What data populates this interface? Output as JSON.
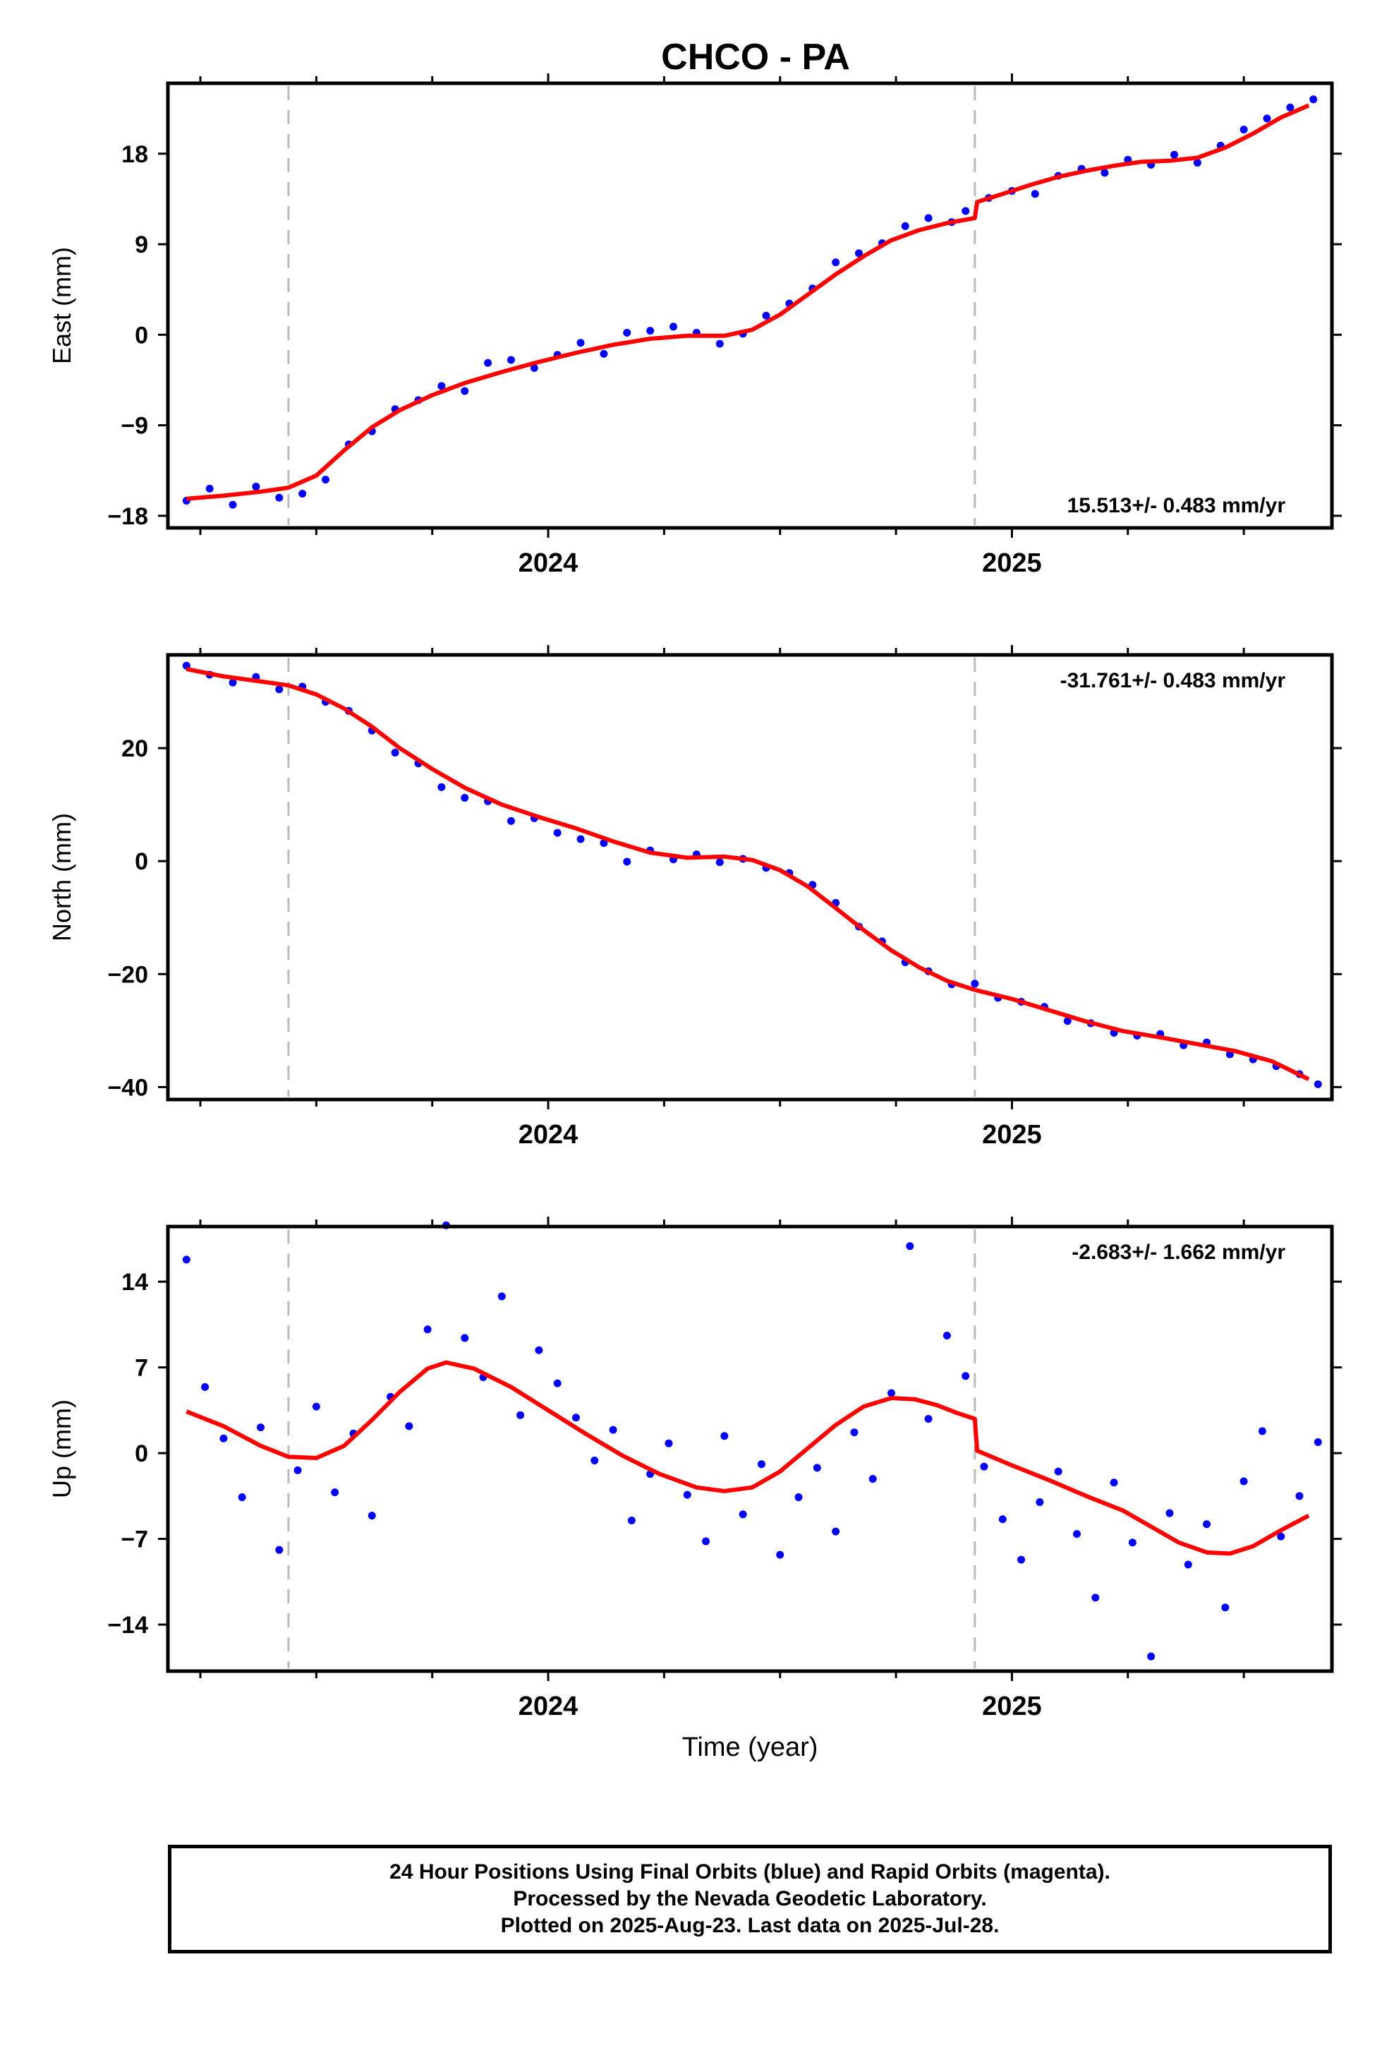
{
  "page": {
    "title": "CHCO - PA"
  },
  "colors": {
    "final_orbits": "#0000ff",
    "fit": "#ff0000",
    "event_line": "#bbbbbb",
    "frame": "#000000"
  },
  "footer": {
    "line1": "24 Hour Positions Using Final Orbits (blue) and Rapid Orbits (magenta).",
    "line2": "Processed by the Nevada Geodetic Laboratory.",
    "line3": "Plotted on 2025-Aug-23. Last data on 2025-Jul-28."
  },
  "chart_data": [
    {
      "type": "scatter",
      "title": "CHCO - PA",
      "ylabel": "East (mm)",
      "xlabel": "",
      "xlim": [
        2023.18,
        2025.69
      ],
      "ylim": [
        -19.2,
        25.0
      ],
      "yticks": [
        -18,
        -9,
        0,
        9,
        18
      ],
      "ytick_labels": [
        "−18",
        "−9",
        "0",
        "9",
        "18"
      ],
      "xticks": [
        2024,
        2025
      ],
      "event_lines": [
        2023.44,
        2024.92
      ],
      "rate_label": "15.513+/- 0.483 mm/yr",
      "rate_position": "bottom-right",
      "grid": false,
      "fit": {
        "x": [
          2023.22,
          2023.3,
          2023.38,
          2023.44,
          2023.5,
          2023.56,
          2023.62,
          2023.68,
          2023.75,
          2023.82,
          2023.9,
          2023.98,
          2024.06,
          2024.14,
          2024.22,
          2024.3,
          2024.38,
          2024.44,
          2024.5,
          2024.56,
          2024.62,
          2024.68,
          2024.74,
          2024.8,
          2024.86,
          2024.92,
          2024.925,
          2024.98,
          2025.04,
          2025.1,
          2025.16,
          2025.22,
          2025.28,
          2025.34,
          2025.4,
          2025.46,
          2025.52,
          2025.58,
          2025.64
        ],
        "y": [
          -16.3,
          -16.0,
          -15.6,
          -15.2,
          -14.0,
          -11.5,
          -9.2,
          -7.5,
          -6.0,
          -4.8,
          -3.7,
          -2.7,
          -1.8,
          -1.0,
          -0.4,
          -0.1,
          -0.1,
          0.5,
          2.0,
          4.0,
          6.0,
          7.8,
          9.4,
          10.4,
          11.1,
          11.6,
          13.2,
          14.0,
          14.9,
          15.7,
          16.3,
          16.8,
          17.2,
          17.3,
          17.6,
          18.6,
          20.0,
          21.6,
          22.8
        ]
      },
      "points": {
        "x": [
          2023.22,
          2023.27,
          2023.32,
          2023.37,
          2023.42,
          2023.47,
          2023.52,
          2023.57,
          2023.62,
          2023.67,
          2023.72,
          2023.77,
          2023.82,
          2023.87,
          2023.92,
          2023.97,
          2024.02,
          2024.07,
          2024.12,
          2024.17,
          2024.22,
          2024.27,
          2024.32,
          2024.37,
          2024.42,
          2024.47,
          2024.52,
          2024.57,
          2024.62,
          2024.67,
          2024.72,
          2024.77,
          2024.82,
          2024.87,
          2024.9,
          2024.95,
          2025.0,
          2025.05,
          2025.1,
          2025.15,
          2025.2,
          2025.25,
          2025.3,
          2025.35,
          2025.4,
          2025.45,
          2025.5,
          2025.55,
          2025.6,
          2025.65
        ],
        "y": [
          -16.5,
          -15.3,
          -16.9,
          -15.1,
          -16.2,
          -15.8,
          -14.4,
          -10.9,
          -9.6,
          -7.4,
          -6.5,
          -5.1,
          -5.6,
          -2.8,
          -2.5,
          -3.3,
          -2.0,
          -0.8,
          -1.9,
          0.2,
          0.4,
          0.8,
          0.2,
          -0.9,
          0.1,
          1.9,
          3.1,
          4.6,
          7.2,
          8.1,
          9.1,
          10.8,
          11.6,
          11.2,
          12.3,
          13.6,
          14.3,
          14.0,
          15.8,
          16.5,
          16.1,
          17.4,
          16.9,
          17.9,
          17.1,
          18.8,
          20.4,
          21.5,
          22.6,
          23.4
        ]
      }
    },
    {
      "type": "scatter",
      "ylabel": "North (mm)",
      "xlabel": "",
      "xlim": [
        2023.18,
        2025.69
      ],
      "ylim": [
        -42.2,
        36.5
      ],
      "yticks": [
        -40,
        -20,
        0,
        20
      ],
      "ytick_labels": [
        "−40",
        "−20",
        "0",
        "20"
      ],
      "xticks": [
        2024,
        2025
      ],
      "event_lines": [
        2023.44,
        2024.92
      ],
      "rate_label": "-31.761+/- 0.483 mm/yr",
      "rate_position": "top-right",
      "grid": false,
      "fit": {
        "x": [
          2023.22,
          2023.3,
          2023.38,
          2023.44,
          2023.5,
          2023.56,
          2023.62,
          2023.68,
          2023.75,
          2023.82,
          2023.9,
          2023.98,
          2024.06,
          2024.14,
          2024.22,
          2024.3,
          2024.38,
          2024.44,
          2024.5,
          2024.56,
          2024.62,
          2024.68,
          2024.74,
          2024.8,
          2024.86,
          2024.92,
          2025.0,
          2025.08,
          2025.16,
          2025.24,
          2025.32,
          2025.4,
          2025.48,
          2025.56,
          2025.64
        ],
        "y": [
          34.0,
          32.7,
          31.8,
          31.1,
          29.5,
          27.0,
          23.8,
          20.0,
          16.3,
          13.0,
          10.0,
          7.8,
          5.8,
          3.5,
          1.5,
          0.6,
          0.8,
          0.2,
          -1.6,
          -4.5,
          -8.3,
          -12.2,
          -15.8,
          -18.8,
          -21.2,
          -22.8,
          -24.4,
          -26.4,
          -28.4,
          -30.1,
          -31.2,
          -32.4,
          -33.6,
          -35.4,
          -38.6
        ]
      },
      "points": {
        "x": [
          2023.22,
          2023.27,
          2023.32,
          2023.37,
          2023.42,
          2023.47,
          2023.52,
          2023.57,
          2023.62,
          2023.67,
          2023.72,
          2023.77,
          2023.82,
          2023.87,
          2023.92,
          2023.97,
          2024.02,
          2024.07,
          2024.12,
          2024.17,
          2024.22,
          2024.27,
          2024.32,
          2024.37,
          2024.42,
          2024.47,
          2024.52,
          2024.57,
          2024.62,
          2024.67,
          2024.72,
          2024.77,
          2024.82,
          2024.87,
          2024.92,
          2024.97,
          2025.02,
          2025.07,
          2025.12,
          2025.17,
          2025.22,
          2025.27,
          2025.32,
          2025.37,
          2025.42,
          2025.47,
          2025.52,
          2025.57,
          2025.62,
          2025.66
        ],
        "y": [
          34.6,
          33.0,
          31.6,
          32.6,
          30.4,
          30.9,
          28.2,
          26.6,
          23.1,
          19.2,
          17.3,
          13.1,
          11.2,
          10.6,
          7.1,
          7.6,
          5.0,
          3.9,
          3.2,
          -0.1,
          1.9,
          0.3,
          1.2,
          -0.2,
          0.4,
          -1.2,
          -2.1,
          -4.2,
          -7.4,
          -11.6,
          -14.2,
          -17.9,
          -19.5,
          -21.8,
          -21.7,
          -24.2,
          -24.9,
          -25.8,
          -28.3,
          -28.7,
          -30.4,
          -30.9,
          -30.6,
          -32.6,
          -32.1,
          -34.2,
          -35.1,
          -36.3,
          -37.7,
          -39.5
        ]
      }
    },
    {
      "type": "scatter",
      "ylabel": "Up (mm)",
      "xlabel": "Time (year)",
      "xlim": [
        2023.18,
        2025.69
      ],
      "ylim": [
        -17.8,
        18.5
      ],
      "yticks": [
        -14,
        -7,
        0,
        7,
        14
      ],
      "ytick_labels": [
        "−14",
        "−7",
        "0",
        "7",
        "14"
      ],
      "xticks": [
        2024,
        2025
      ],
      "event_lines": [
        2023.44,
        2024.92
      ],
      "rate_label": "-2.683+/- 1.662 mm/yr",
      "rate_position": "top-right",
      "grid": false,
      "fit": {
        "x": [
          2023.22,
          2023.3,
          2023.38,
          2023.44,
          2023.5,
          2023.56,
          2023.62,
          2023.68,
          2023.74,
          2023.78,
          2023.84,
          2023.92,
          2024.0,
          2024.08,
          2024.16,
          2024.24,
          2024.32,
          2024.38,
          2024.44,
          2024.5,
          2024.56,
          2024.62,
          2024.68,
          2024.74,
          2024.79,
          2024.84,
          2024.88,
          2024.92,
          2024.925,
          2025.0,
          2025.08,
          2025.16,
          2025.24,
          2025.3,
          2025.36,
          2025.42,
          2025.47,
          2025.52,
          2025.58,
          2025.64
        ],
        "y": [
          3.4,
          2.2,
          0.6,
          -0.3,
          -0.4,
          0.6,
          2.7,
          5.0,
          6.9,
          7.4,
          6.9,
          5.4,
          3.5,
          1.6,
          -0.2,
          -1.7,
          -2.8,
          -3.1,
          -2.8,
          -1.5,
          0.4,
          2.3,
          3.8,
          4.5,
          4.4,
          3.9,
          3.3,
          2.8,
          0.2,
          -1.0,
          -2.2,
          -3.5,
          -4.7,
          -6.0,
          -7.3,
          -8.1,
          -8.2,
          -7.6,
          -6.3,
          -5.1
        ]
      },
      "points": {
        "x": [
          2023.22,
          2023.26,
          2023.3,
          2023.34,
          2023.38,
          2023.42,
          2023.46,
          2023.5,
          2023.54,
          2023.58,
          2023.62,
          2023.66,
          2023.7,
          2023.74,
          2023.78,
          2023.82,
          2023.86,
          2023.9,
          2023.94,
          2023.98,
          2024.02,
          2024.06,
          2024.1,
          2024.14,
          2024.18,
          2024.22,
          2024.26,
          2024.3,
          2024.34,
          2024.38,
          2024.42,
          2024.46,
          2024.5,
          2024.54,
          2024.58,
          2024.62,
          2024.66,
          2024.7,
          2024.74,
          2024.78,
          2024.82,
          2024.86,
          2024.9,
          2024.94,
          2024.98,
          2025.02,
          2025.06,
          2025.1,
          2025.14,
          2025.18,
          2025.22,
          2025.26,
          2025.3,
          2025.34,
          2025.38,
          2025.42,
          2025.46,
          2025.5,
          2025.54,
          2025.58,
          2025.62,
          2025.66
        ],
        "y": [
          15.8,
          5.4,
          1.2,
          -3.6,
          2.1,
          -7.9,
          -1.4,
          3.8,
          -3.2,
          1.6,
          -5.1,
          4.6,
          2.2,
          10.1,
          18.6,
          9.4,
          6.2,
          12.8,
          3.1,
          8.4,
          5.7,
          2.9,
          -0.6,
          1.9,
          -5.5,
          -1.7,
          0.8,
          -3.4,
          -7.2,
          1.4,
          -5.0,
          -0.9,
          -8.3,
          -3.6,
          -1.2,
          -6.4,
          1.7,
          -2.1,
          4.9,
          16.9,
          2.8,
          9.6,
          6.3,
          -1.1,
          -5.4,
          -8.7,
          -4.0,
          -1.5,
          -6.6,
          -11.8,
          -2.4,
          -7.3,
          -16.6,
          -4.9,
          -9.1,
          -5.8,
          -12.6,
          -2.3,
          1.8,
          -6.8,
          -3.5,
          0.9
        ]
      }
    }
  ]
}
